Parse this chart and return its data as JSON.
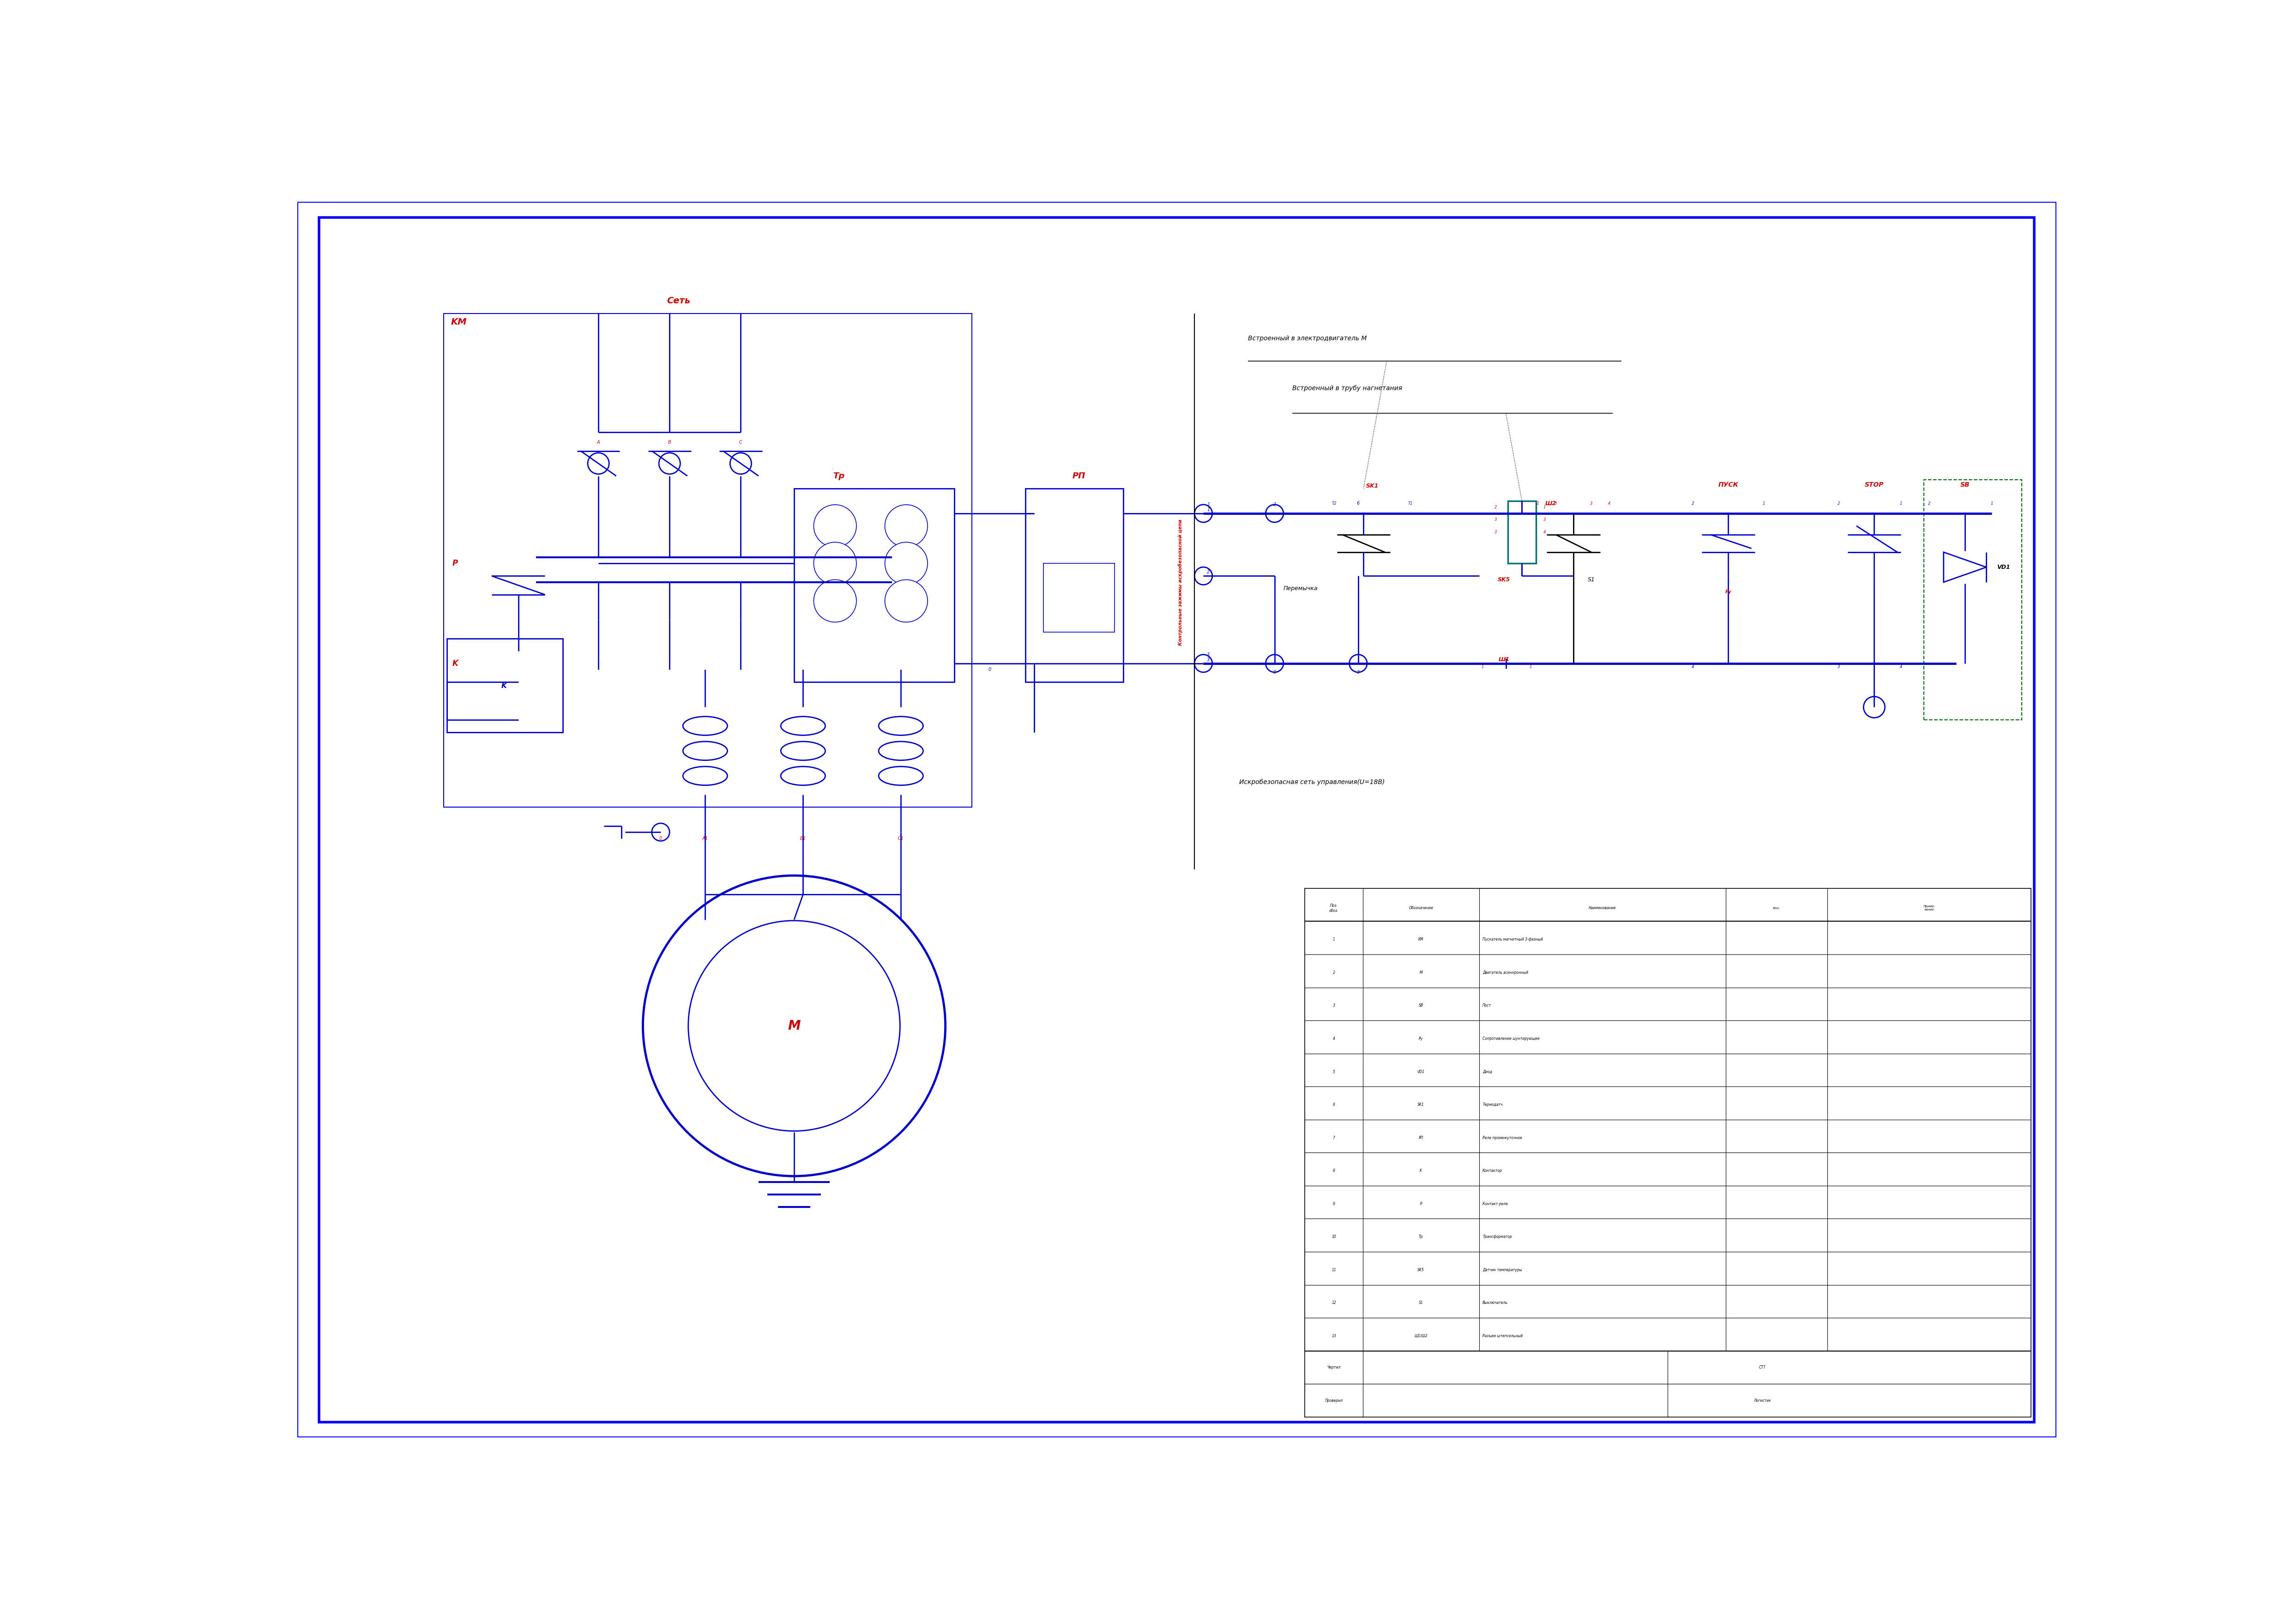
{
  "bg": "#ffffff",
  "bc": "#0000ff",
  "lc": "#0000cc",
  "rc": "#cc0000",
  "blk": "#000000",
  "tc": "#007070",
  "lw": 2.0,
  "lw2": 3.5,
  "lw1": 1.2,
  "annotations": {
    "set": "Сеть",
    "km": "KM",
    "p": "P",
    "k": "K",
    "m": "M",
    "tr": "Тр",
    "rp": "РП",
    "sk1": "SK1",
    "sk5": "SK5",
    "sh1": "Ш1",
    "sh2": "Ш2",
    "s1": "S1",
    "pusk": "ПУСК",
    "stop": "STOP",
    "sb": "SB",
    "vd1": "VD1",
    "peremychka": "Перемычка",
    "vstroenny_m": "Встроенный в электродвигатель M",
    "vstroenny_tr": "Встроенный в трубу нагнетания",
    "iskro": "Искробезопасная сеть управления(U=18В)",
    "kontrol": "Контрольные зажимы искробезопасной цепи"
  },
  "components": [
    [
      "1",
      "KM",
      "Пускатель магнитный 3-фазный"
    ],
    [
      "2",
      "M",
      "Двигатель асинхронный"
    ],
    [
      "3",
      "SB",
      "Пост"
    ],
    [
      "4",
      "Ру",
      "Сопротивление шунтирующее"
    ],
    [
      "5",
      "VD1",
      "Диод"
    ],
    [
      "6",
      "SK1",
      "Термодатч."
    ],
    [
      "7",
      "РП",
      "Реле промежуточное"
    ],
    [
      "8",
      "K",
      "Контактор"
    ],
    [
      "9",
      "P",
      "Контакт реле"
    ],
    [
      "10",
      "Тр",
      "Трансформатор"
    ],
    [
      "11",
      "SK5",
      "Датчик температуры"
    ],
    [
      "12",
      "S1",
      "Выключатель"
    ],
    [
      "13",
      "Ш1/Ш2",
      "Разъем штепсельный"
    ]
  ]
}
